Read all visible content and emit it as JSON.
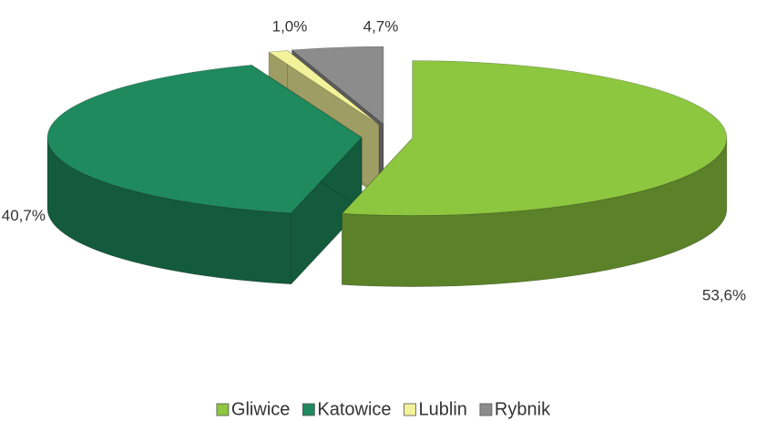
{
  "chart_data": {
    "type": "pie3d",
    "categories": [
      "Gliwice",
      "Katowice",
      "Lublin",
      "Rybnik"
    ],
    "values": [
      53.6,
      40.7,
      1.0,
      4.7
    ],
    "value_labels": [
      "53,6%",
      "40,7%",
      "1,0%",
      "4,7%"
    ],
    "colors": [
      "#8dc63f",
      "#1f8a5e",
      "#f2f29a",
      "#8c8c8c"
    ],
    "legend": "bottom"
  }
}
